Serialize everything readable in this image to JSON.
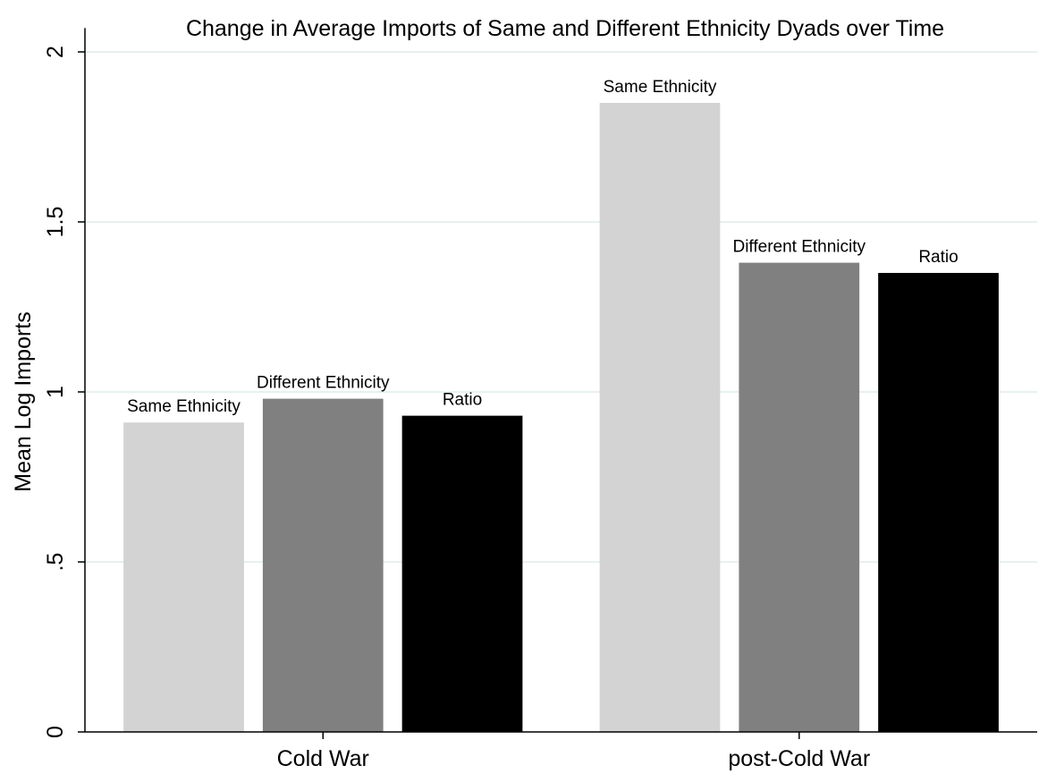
{
  "chart_data": {
    "type": "bar",
    "title": "Change in Average Imports of Same and Different Ethnicity Dyads over Time",
    "xlabel": "",
    "ylabel": "Mean Log Imports",
    "ylim": [
      0,
      2.1
    ],
    "yticks": [
      0,
      0.5,
      1,
      1.5,
      2
    ],
    "ytick_labels": [
      "0",
      ".5",
      "1",
      "1.5",
      "2"
    ],
    "grid": true,
    "legend": "none",
    "categories": [
      "Cold War",
      "post-Cold War"
    ],
    "series": [
      {
        "name": "Same Ethnicity",
        "color": "#d3d3d3",
        "values": [
          0.91,
          1.85
        ]
      },
      {
        "name": "Different Ethnicity",
        "color": "#808080",
        "values": [
          0.98,
          1.38
        ]
      },
      {
        "name": "Ratio",
        "color": "#000000",
        "values": [
          0.93,
          1.35
        ]
      }
    ],
    "colors": {
      "grid": "#e8f0f0",
      "axis": "#000000",
      "background": "#ffffff"
    }
  }
}
